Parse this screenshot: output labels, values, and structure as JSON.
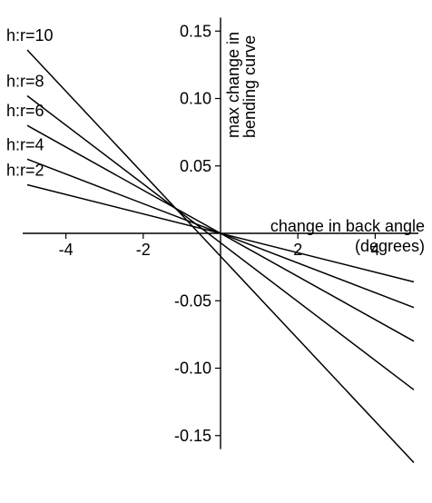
{
  "chart_data": {
    "type": "line",
    "title": "",
    "xlabel_lines": [
      "change in back angle",
      "(degrees)"
    ],
    "ylabel_lines": [
      "max change in",
      "bending curve"
    ],
    "xlim": [
      -5,
      5
    ],
    "ylim": [
      -0.16,
      0.16
    ],
    "x_ticks": [
      {
        "value": -4,
        "label": "-4"
      },
      {
        "value": -2,
        "label": "-2"
      },
      {
        "value": 2,
        "label": "2"
      },
      {
        "value": 4,
        "label": "4"
      }
    ],
    "y_ticks": [
      {
        "value": 0.15,
        "label": "0.15"
      },
      {
        "value": 0.1,
        "label": "0.10"
      },
      {
        "value": 0.05,
        "label": "0.05"
      },
      {
        "value": -0.05,
        "label": "-0.05"
      },
      {
        "value": -0.1,
        "label": "-0.10"
      },
      {
        "value": -0.15,
        "label": "-0.15"
      }
    ],
    "grid": false,
    "series": [
      {
        "name": "h:r=2",
        "x": [
          -5,
          5
        ],
        "y": [
          0.036,
          -0.036
        ]
      },
      {
        "name": "h:r=4",
        "x": [
          -5,
          5
        ],
        "y": [
          0.055,
          -0.055
        ]
      },
      {
        "name": "h:r=6",
        "x": [
          -5,
          5
        ],
        "y": [
          0.08,
          -0.08
        ]
      },
      {
        "name": "h:r=8",
        "x": [
          -5,
          5
        ],
        "y": [
          0.102,
          -0.116
        ]
      },
      {
        "name": "h:r=10",
        "x": [
          -5,
          5
        ],
        "y": [
          0.136,
          -0.17
        ]
      }
    ]
  }
}
